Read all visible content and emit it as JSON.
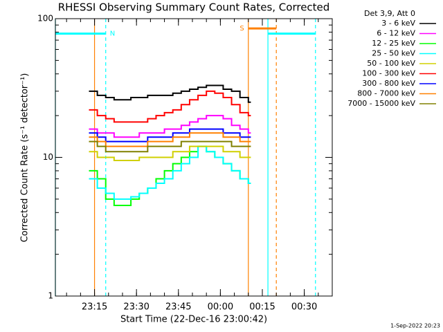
{
  "chart_data": {
    "type": "line",
    "title": "RHESSI Observing Summary Count Rates, Corrected",
    "xlabel": "Start Time (22-Dec-16 23:00:42)",
    "ylabel": "Corrected Count Rate (s⁻¹ detector⁻¹)",
    "legend_title": "Det 3,9, Att 0",
    "timestamp": "1-Sep-2022 20:23",
    "log_y": true,
    "xlim": [
      "23:01",
      "00:40"
    ],
    "xticks": [
      "23:15",
      "23:30",
      "23:45",
      "00:00",
      "00:15",
      "00:30"
    ],
    "ylim": [
      1,
      100
    ],
    "yticks": [
      1,
      10,
      100
    ],
    "x": [
      "23:13",
      "23:16",
      "23:19",
      "23:22",
      "23:25",
      "23:28",
      "23:31",
      "23:34",
      "23:37",
      "23:40",
      "23:43",
      "23:46",
      "23:49",
      "23:52",
      "23:55",
      "23:58",
      "00:01",
      "00:04",
      "00:07",
      "00:10"
    ],
    "series": [
      {
        "name": "3 - 6 keV",
        "color": "#000000",
        "values": [
          30,
          28,
          27,
          26,
          26,
          27,
          27,
          28,
          28,
          28,
          29,
          30,
          31,
          32,
          33,
          33,
          31,
          30,
          27,
          25
        ]
      },
      {
        "name": "6 - 12 keV",
        "color": "#ff00ff",
        "values": [
          16,
          15,
          15,
          14,
          14,
          14,
          15,
          15,
          15,
          16,
          16,
          17,
          18,
          19,
          20,
          20,
          19,
          17,
          16,
          15
        ]
      },
      {
        "name": "12 - 25 keV",
        "color": "#00ff00",
        "values": [
          8,
          7,
          5,
          4.5,
          4.5,
          5,
          5.5,
          6,
          7,
          8,
          9,
          10,
          11,
          12,
          11,
          10,
          9,
          8,
          7,
          6.5
        ]
      },
      {
        "name": "25 - 50 keV",
        "color": "#00ffff",
        "values": [
          7,
          6,
          5.5,
          5,
          5,
          5.2,
          5.5,
          6,
          6.5,
          7,
          8,
          9,
          10,
          12,
          11,
          10,
          9,
          8,
          7,
          6.5
        ]
      },
      {
        "name": "50 - 100 keV",
        "color": "#d0d000",
        "values": [
          11,
          10,
          10,
          9.5,
          9.5,
          9.5,
          10,
          10,
          10,
          10,
          11,
          11,
          12,
          12,
          12,
          12,
          11,
          11,
          10,
          10
        ]
      },
      {
        "name": "100 - 300 keV",
        "color": "#ff0000",
        "values": [
          22,
          20,
          19,
          18,
          18,
          18,
          18,
          19,
          20,
          21,
          22,
          24,
          26,
          28,
          30,
          29,
          27,
          24,
          21,
          20
        ]
      },
      {
        "name": "300 - 800 keV",
        "color": "#0000ff",
        "values": [
          15,
          14,
          13,
          13,
          13,
          13,
          13,
          14,
          14,
          14,
          15,
          15,
          16,
          16,
          16,
          16,
          15,
          15,
          14,
          14
        ]
      },
      {
        "name": "800 - 7000 keV",
        "color": "#ff8000",
        "values": [
          14,
          13,
          12,
          12,
          12,
          12,
          12,
          13,
          13,
          13,
          14,
          14,
          15,
          15,
          15,
          15,
          14,
          14,
          13,
          13
        ]
      },
      {
        "name": "7000 - 15000 keV",
        "color": "#808000",
        "values": [
          13,
          12,
          11,
          11,
          11,
          11,
          11,
          12,
          12,
          12,
          12,
          13,
          13,
          13,
          13,
          13,
          13,
          12,
          12,
          12
        ]
      }
    ],
    "vlines": [
      {
        "x": "23:01",
        "color": "#00ffff",
        "dashed": false
      },
      {
        "x": "23:15",
        "color": "#ff8000",
        "dashed": false
      },
      {
        "x": "23:19",
        "color": "#00ffff",
        "dashed": true
      },
      {
        "x": "00:10",
        "color": "#ff8000",
        "dashed": false
      },
      {
        "x": "00:17",
        "color": "#00ffff",
        "dashed": false
      },
      {
        "x": "00:20",
        "color": "#ff8000",
        "dashed": true
      },
      {
        "x": "00:34",
        "color": "#00ffff",
        "dashed": true
      }
    ],
    "bars": [
      {
        "text": "N",
        "color": "#00ffff",
        "x": [
          "23:01",
          "23:19"
        ],
        "y": 78,
        "text_side": "right"
      },
      {
        "text": "S",
        "color": "#ff8000",
        "x": [
          "00:10",
          "00:20"
        ],
        "y": 85,
        "text_side": "left"
      },
      {
        "color": "#00ffff",
        "x": [
          "00:17",
          "00:34"
        ],
        "y": 78
      }
    ]
  }
}
